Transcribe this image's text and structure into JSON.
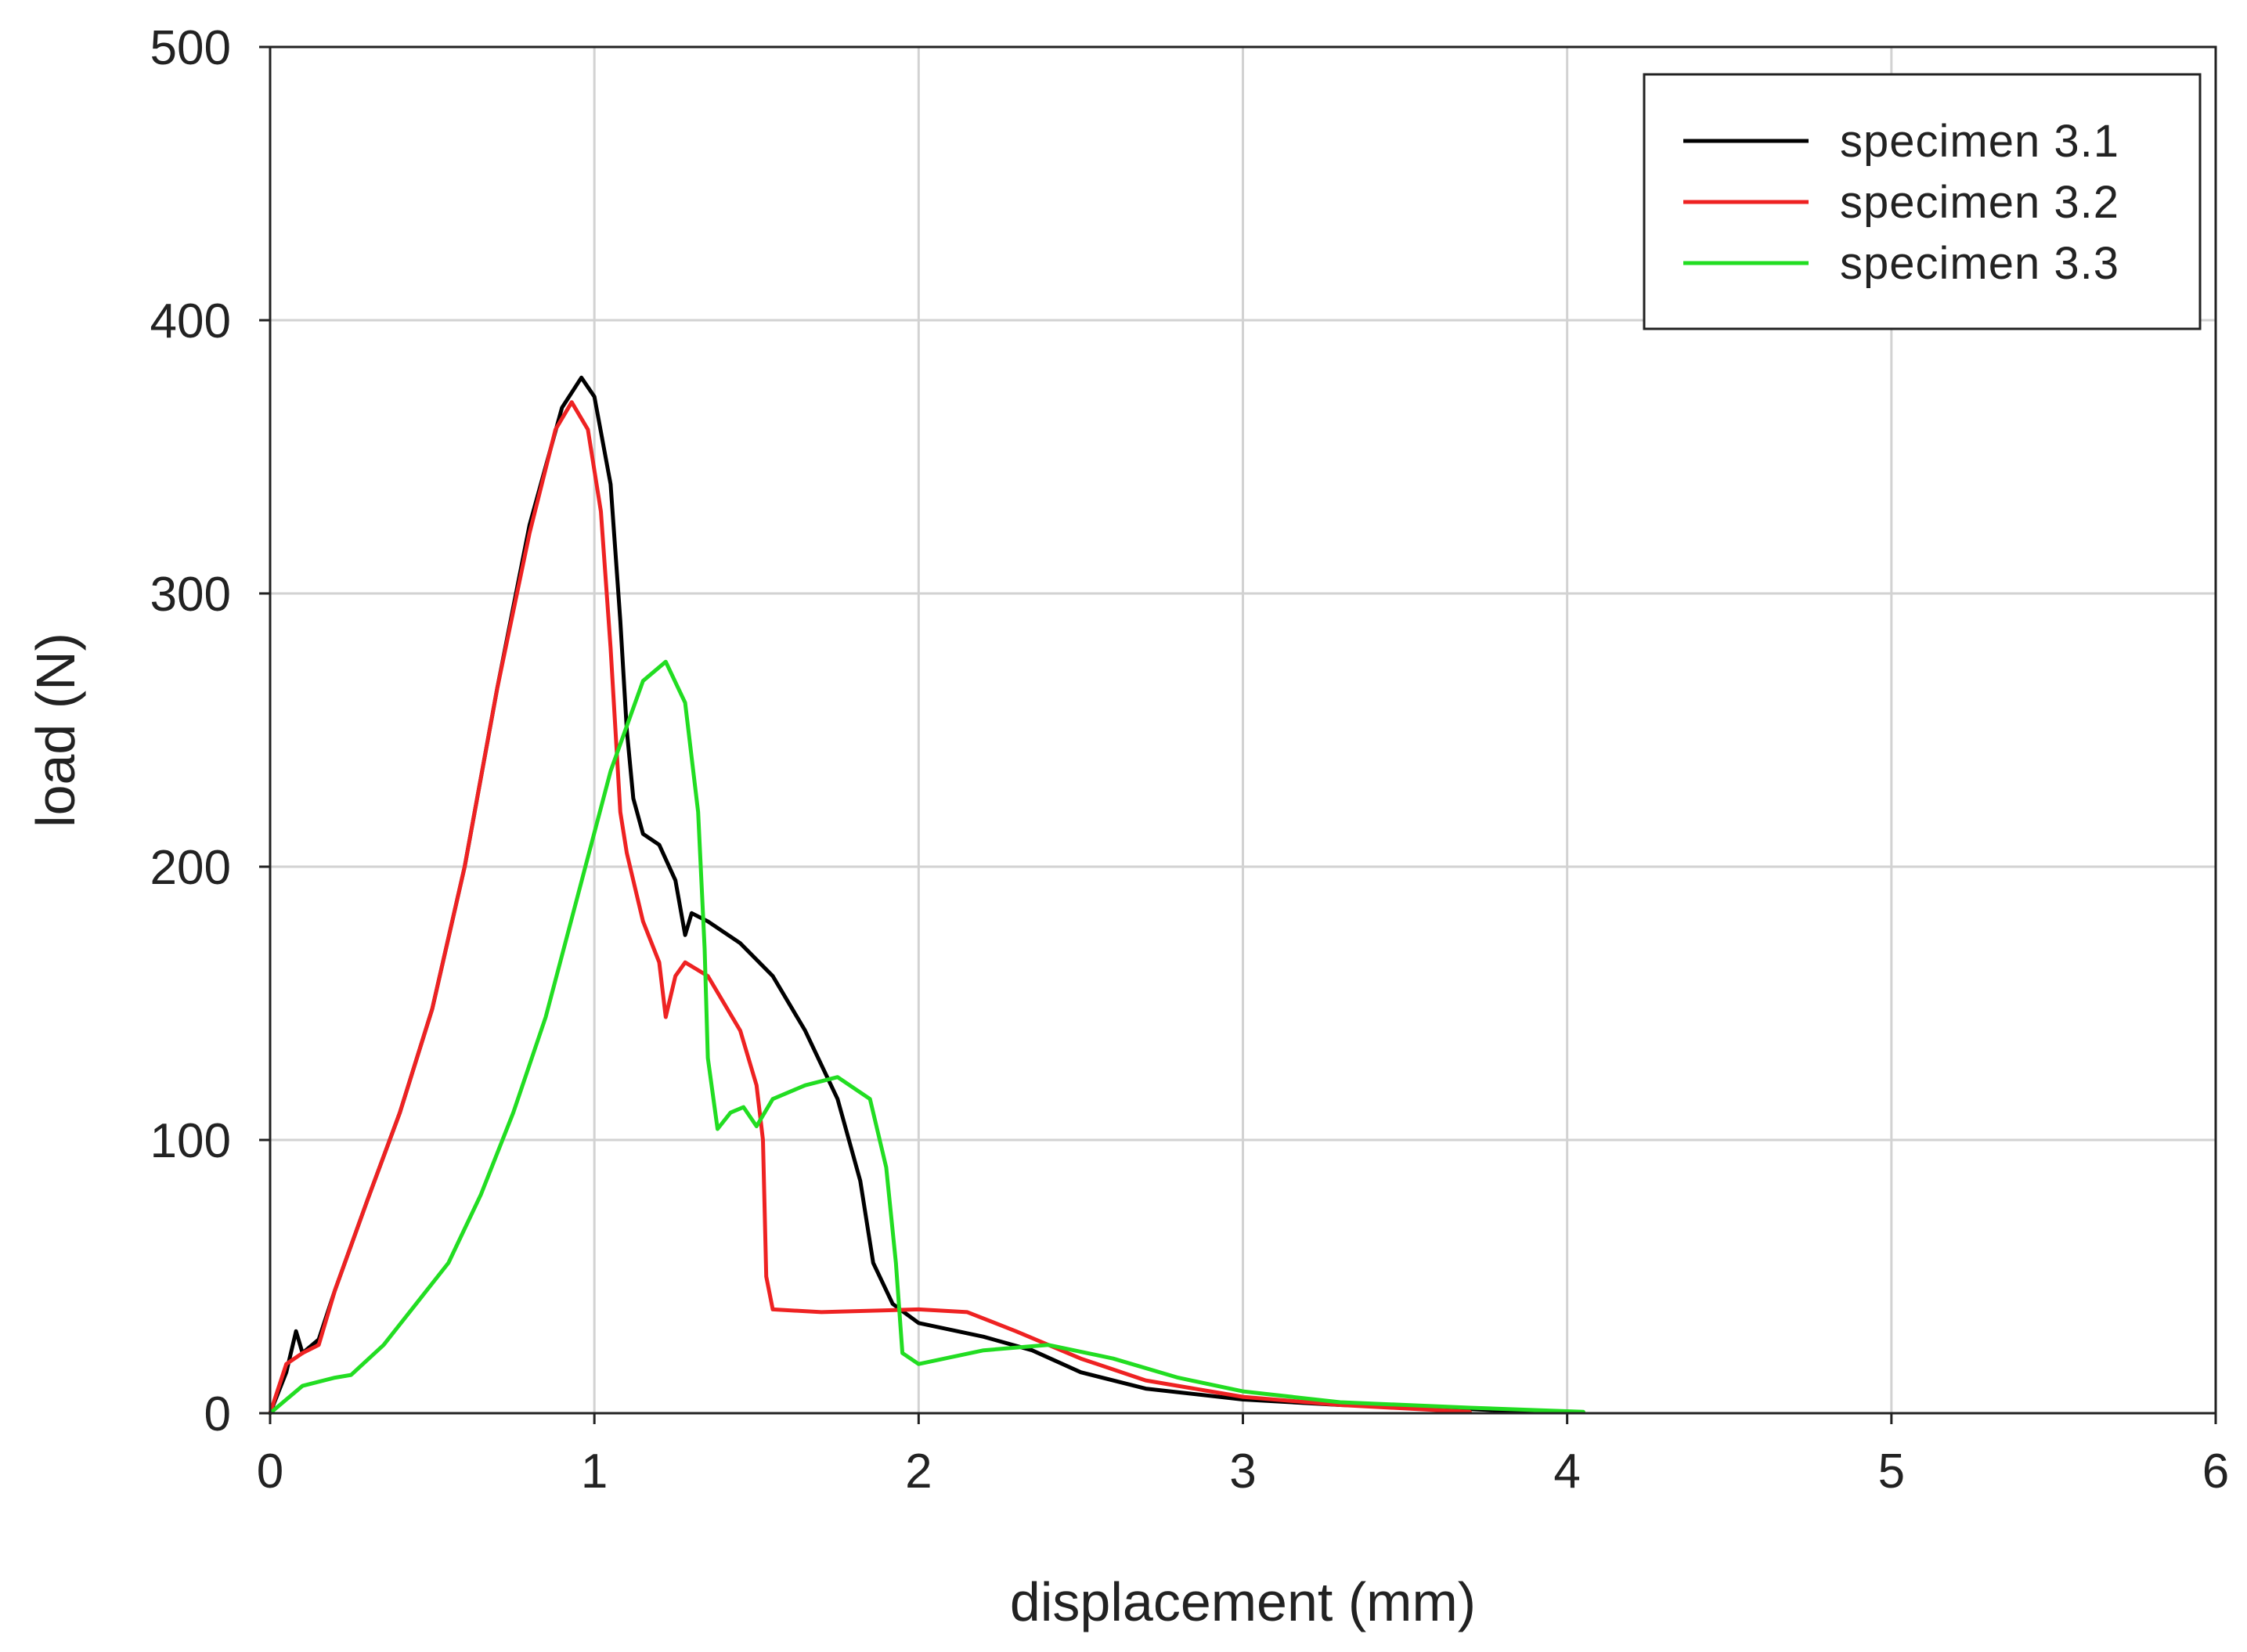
{
  "chart_data": {
    "type": "line",
    "title": "",
    "xlabel": "displacement (mm)",
    "ylabel": "load (N)",
    "xlim": [
      0,
      6
    ],
    "ylim": [
      0,
      500
    ],
    "xticks": [
      "0",
      "1",
      "2",
      "3",
      "4",
      "5",
      "6"
    ],
    "yticks": [
      "0",
      "100",
      "200",
      "300",
      "400",
      "500"
    ],
    "grid": true,
    "legend_position": "top-right",
    "series": [
      {
        "name": "specimen 3.1",
        "color": "#000000",
        "points": [
          [
            0,
            0
          ],
          [
            0.05,
            15
          ],
          [
            0.08,
            30
          ],
          [
            0.1,
            22
          ],
          [
            0.15,
            27
          ],
          [
            0.2,
            45
          ],
          [
            0.3,
            78
          ],
          [
            0.4,
            110
          ],
          [
            0.5,
            148
          ],
          [
            0.6,
            200
          ],
          [
            0.7,
            265
          ],
          [
            0.8,
            325
          ],
          [
            0.9,
            368
          ],
          [
            0.96,
            379
          ],
          [
            1.0,
            372
          ],
          [
            1.05,
            340
          ],
          [
            1.08,
            290
          ],
          [
            1.1,
            250
          ],
          [
            1.12,
            225
          ],
          [
            1.15,
            212
          ],
          [
            1.2,
            208
          ],
          [
            1.25,
            195
          ],
          [
            1.28,
            175
          ],
          [
            1.3,
            183
          ],
          [
            1.35,
            180
          ],
          [
            1.45,
            172
          ],
          [
            1.55,
            160
          ],
          [
            1.65,
            140
          ],
          [
            1.75,
            115
          ],
          [
            1.82,
            85
          ],
          [
            1.86,
            55
          ],
          [
            1.92,
            40
          ],
          [
            2.0,
            33
          ],
          [
            2.2,
            28
          ],
          [
            2.35,
            23
          ],
          [
            2.5,
            15
          ],
          [
            2.7,
            9
          ],
          [
            3.0,
            5
          ],
          [
            3.3,
            3
          ],
          [
            3.6,
            2
          ],
          [
            3.8,
            1
          ],
          [
            4.0,
            0.5
          ]
        ]
      },
      {
        "name": "specimen 3.2",
        "color": "#ee2222",
        "points": [
          [
            0,
            0
          ],
          [
            0.05,
            18
          ],
          [
            0.1,
            22
          ],
          [
            0.15,
            25
          ],
          [
            0.2,
            45
          ],
          [
            0.3,
            78
          ],
          [
            0.4,
            110
          ],
          [
            0.5,
            148
          ],
          [
            0.6,
            200
          ],
          [
            0.7,
            265
          ],
          [
            0.8,
            322
          ],
          [
            0.88,
            360
          ],
          [
            0.93,
            370
          ],
          [
            0.98,
            360
          ],
          [
            1.02,
            330
          ],
          [
            1.05,
            280
          ],
          [
            1.08,
            220
          ],
          [
            1.1,
            205
          ],
          [
            1.15,
            180
          ],
          [
            1.2,
            165
          ],
          [
            1.22,
            145
          ],
          [
            1.25,
            160
          ],
          [
            1.28,
            165
          ],
          [
            1.35,
            160
          ],
          [
            1.45,
            140
          ],
          [
            1.5,
            120
          ],
          [
            1.52,
            100
          ],
          [
            1.53,
            50
          ],
          [
            1.55,
            38
          ],
          [
            1.7,
            37
          ],
          [
            2.0,
            38
          ],
          [
            2.15,
            37
          ],
          [
            2.3,
            30
          ],
          [
            2.5,
            20
          ],
          [
            2.7,
            12
          ],
          [
            3.0,
            6
          ],
          [
            3.3,
            3
          ],
          [
            3.7,
            0.5
          ]
        ]
      },
      {
        "name": "specimen 3.3",
        "color": "#22dd22",
        "points": [
          [
            0,
            0
          ],
          [
            0.05,
            5
          ],
          [
            0.1,
            10
          ],
          [
            0.2,
            13
          ],
          [
            0.25,
            14
          ],
          [
            0.35,
            25
          ],
          [
            0.45,
            40
          ],
          [
            0.55,
            55
          ],
          [
            0.65,
            80
          ],
          [
            0.75,
            110
          ],
          [
            0.85,
            145
          ],
          [
            0.95,
            190
          ],
          [
            1.05,
            235
          ],
          [
            1.15,
            268
          ],
          [
            1.22,
            275
          ],
          [
            1.28,
            260
          ],
          [
            1.32,
            220
          ],
          [
            1.34,
            170
          ],
          [
            1.35,
            130
          ],
          [
            1.38,
            104
          ],
          [
            1.42,
            110
          ],
          [
            1.46,
            112
          ],
          [
            1.5,
            105
          ],
          [
            1.55,
            115
          ],
          [
            1.65,
            120
          ],
          [
            1.75,
            123
          ],
          [
            1.85,
            115
          ],
          [
            1.9,
            90
          ],
          [
            1.93,
            55
          ],
          [
            1.95,
            22
          ],
          [
            2.0,
            18
          ],
          [
            2.2,
            23
          ],
          [
            2.4,
            25
          ],
          [
            2.6,
            20
          ],
          [
            2.8,
            13
          ],
          [
            3.0,
            8
          ],
          [
            3.3,
            4
          ],
          [
            3.7,
            2
          ],
          [
            4.05,
            0.5
          ]
        ]
      }
    ]
  }
}
